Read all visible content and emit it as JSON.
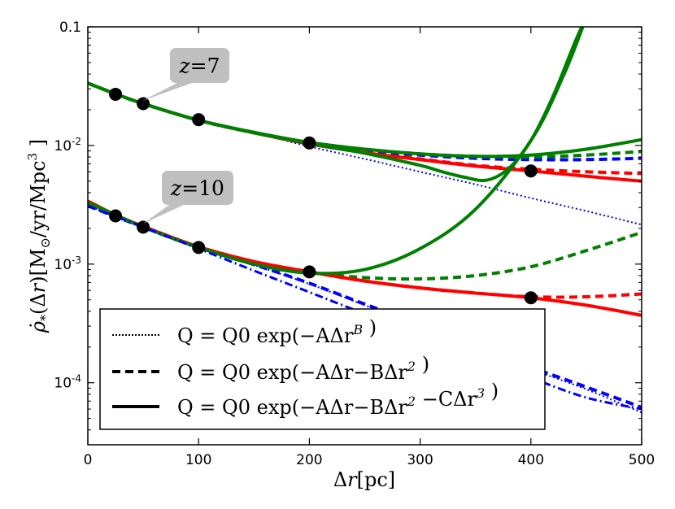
{
  "chart_data": {
    "type": "line",
    "title": "",
    "xlabel": "Δr[pc]",
    "ylabel": "ρ̇*(Δr)[M⊙/yr/Mpc³]",
    "xlim": [
      0,
      500
    ],
    "ylim": [
      3e-05,
      0.1
    ],
    "yscale": "log",
    "x_ticks": [
      0,
      100,
      200,
      300,
      400,
      500
    ],
    "x_tick_labels": [
      "0",
      "100",
      "200",
      "300",
      "400",
      "500"
    ],
    "y_ticks": [
      0.0001,
      0.001,
      0.01,
      0.1
    ],
    "y_tick_labels": [
      {
        "base": "10",
        "exp": "-4"
      },
      {
        "base": "10",
        "exp": "-3"
      },
      {
        "base": "10",
        "exp": "-2"
      },
      {
        "base": "0.1",
        "exp": ""
      }
    ],
    "annotations": [
      {
        "text": "z = 7",
        "var": "z",
        "eq": "=",
        "val": "7",
        "x": 80,
        "y": 0.04
      },
      {
        "text": "z = 10",
        "var": "z",
        "eq": "=",
        "val": "10",
        "x": 80,
        "y": 0.0036
      }
    ],
    "legend": {
      "placement": "lower-left",
      "entries": [
        {
          "style": "dotted",
          "label": "Q = Q0 exp(−AΔr^B )"
        },
        {
          "style": "dashed",
          "label": "Q = Q0 exp(−AΔr−BΔr^2 )"
        },
        {
          "style": "solid",
          "label": "Q = Q0 exp(−AΔr−BΔr^2 −CΔr^3 )"
        }
      ]
    },
    "colors": {
      "red": "#ff0000",
      "green": "#007f00",
      "blue": "#0000ff",
      "points": "#000000"
    },
    "points": [
      {
        "name": "z7",
        "x": [
          25,
          50,
          100,
          200,
          400
        ],
        "y": [
          0.027,
          0.0225,
          0.0165,
          0.0105,
          0.0061
        ]
      },
      {
        "name": "z10",
        "x": [
          25,
          50,
          100,
          200,
          400
        ],
        "y": [
          0.00255,
          0.00205,
          0.00138,
          0.00086,
          0.00052
        ]
      }
    ],
    "series": [
      {
        "name": "z7 exp(-A dr^B)",
        "color": "blue",
        "style": "dotted",
        "x": [
          0,
          25,
          50,
          100,
          150,
          200,
          250,
          300,
          350,
          400,
          450,
          500
        ],
        "y": [
          0.0335,
          0.0272,
          0.0225,
          0.0163,
          0.0128,
          0.0098,
          0.0077,
          0.006,
          0.0047,
          0.0036,
          0.0028,
          0.00215
        ]
      },
      {
        "name": "z7 exp(-A dr-B dr^2) red",
        "color": "red",
        "style": "dashed",
        "x": [
          0,
          25,
          50,
          100,
          150,
          200,
          250,
          300,
          350,
          400,
          450,
          500
        ],
        "y": [
          0.0335,
          0.0272,
          0.0225,
          0.0163,
          0.0128,
          0.0103,
          0.0088,
          0.0077,
          0.0068,
          0.0063,
          0.006,
          0.0058
        ]
      },
      {
        "name": "z7 exp(-A dr-B dr^2) blue",
        "color": "blue",
        "style": "dashed",
        "x": [
          0,
          25,
          50,
          100,
          150,
          200,
          250,
          300,
          350,
          400,
          450,
          500
        ],
        "y": [
          0.0335,
          0.0272,
          0.0225,
          0.0163,
          0.0128,
          0.0105,
          0.0091,
          0.0083,
          0.0078,
          0.0076,
          0.0076,
          0.0078
        ]
      },
      {
        "name": "z7 exp(-A dr-B dr^2) green",
        "color": "green",
        "style": "dashed",
        "x": [
          0,
          25,
          50,
          100,
          150,
          200,
          250,
          300,
          350,
          400,
          450,
          500
        ],
        "y": [
          0.0335,
          0.0272,
          0.0225,
          0.0163,
          0.0128,
          0.0106,
          0.0093,
          0.0085,
          0.0081,
          0.008,
          0.0083,
          0.0089
        ]
      },
      {
        "name": "z7 exp(-A dr-B dr^2-C dr^3) red",
        "color": "red",
        "style": "solid",
        "x": [
          0,
          25,
          50,
          100,
          150,
          200,
          250,
          300,
          350,
          400,
          450,
          500
        ],
        "y": [
          0.0335,
          0.0272,
          0.0225,
          0.0163,
          0.0128,
          0.0103,
          0.0087,
          0.0076,
          0.0067,
          0.0061,
          0.0055,
          0.005
        ]
      },
      {
        "name": "z7 exp(-A dr-B dr^2-C dr^3) green cubic",
        "color": "green",
        "style": "solid",
        "x": [
          0,
          25,
          50,
          100,
          150,
          200,
          250,
          300,
          320,
          340,
          360,
          380,
          400,
          420,
          440,
          450
        ],
        "y": [
          0.0335,
          0.0272,
          0.0225,
          0.0163,
          0.0128,
          0.0104,
          0.0086,
          0.0068,
          0.006,
          0.0054,
          0.0051,
          0.0064,
          0.011,
          0.026,
          0.075,
          0.12
        ]
      },
      {
        "name": "z7 exp(-A dr-B dr^2-C dr^3) green",
        "color": "green",
        "style": "solid",
        "x": [
          0,
          25,
          50,
          100,
          150,
          200,
          250,
          300,
          350,
          400,
          450,
          500
        ],
        "y": [
          0.0335,
          0.0272,
          0.0225,
          0.0163,
          0.0129,
          0.0106,
          0.0093,
          0.0085,
          0.0081,
          0.0083,
          0.0093,
          0.0112
        ]
      },
      {
        "name": "z10 exp(-A dr^B)",
        "color": "blue",
        "style": "dotted",
        "x": [
          0,
          50,
          100,
          150,
          200,
          250,
          300,
          350,
          400,
          450,
          500
        ],
        "y": [
          0.0031,
          0.00205,
          0.00138,
          0.00098,
          0.00068,
          0.00045,
          0.0003,
          0.000195,
          0.00013,
          8.8e-05,
          5.6e-05
        ]
      },
      {
        "name": "z10 exp(-A dr-B dr^2) red",
        "color": "red",
        "style": "dashed",
        "x": [
          0,
          25,
          50,
          100,
          150,
          200,
          250,
          300,
          350,
          400,
          450,
          500
        ],
        "y": [
          0.0033,
          0.0026,
          0.00208,
          0.0014,
          0.00105,
          0.00086,
          0.00072,
          0.00063,
          0.00057,
          0.00053,
          0.00053,
          0.00056
        ]
      },
      {
        "name": "z10 exp(-A dr-B dr^2) green",
        "color": "green",
        "style": "dashed",
        "x": [
          0,
          25,
          50,
          100,
          150,
          200,
          250,
          300,
          350,
          400,
          450,
          500
        ],
        "y": [
          0.0033,
          0.0026,
          0.00205,
          0.00138,
          0.00102,
          0.00085,
          0.00077,
          0.00075,
          0.0008,
          0.00095,
          0.0013,
          0.00185
        ]
      },
      {
        "name": "z10 exp(-A dr-B dr^2) blue",
        "color": "blue",
        "style": "dashed",
        "x": [
          0,
          50,
          100,
          150,
          200,
          250,
          300,
          350,
          400,
          450,
          500
        ],
        "y": [
          0.0031,
          0.00205,
          0.00138,
          0.00099,
          0.00069,
          0.00046,
          0.00031,
          0.0002,
          0.000135,
          9.2e-05,
          6.2e-05
        ]
      },
      {
        "name": "z10 exp(-A dr-B dr^2-C dr^3) red",
        "color": "red",
        "style": "solid",
        "x": [
          0,
          25,
          50,
          100,
          150,
          200,
          250,
          300,
          350,
          400,
          450,
          500
        ],
        "y": [
          0.0034,
          0.0026,
          0.00208,
          0.0014,
          0.00105,
          0.00086,
          0.00072,
          0.00063,
          0.00057,
          0.00052,
          0.00045,
          0.00037
        ]
      },
      {
        "name": "z10 exp(-A dr-B dr^2-C dr^3) green",
        "color": "green",
        "style": "solid",
        "x": [
          0,
          25,
          50,
          100,
          150,
          200,
          250,
          300,
          350,
          400,
          430,
          450
        ],
        "y": [
          0.0033,
          0.0026,
          0.00205,
          0.00138,
          0.001,
          0.00084,
          0.0009,
          0.00135,
          0.0029,
          0.011,
          0.04,
          0.12
        ]
      },
      {
        "name": "z10 dash-dot blue",
        "color": "blue",
        "style": "dashdot",
        "x": [
          0,
          50,
          100,
          150,
          200,
          250,
          300,
          350,
          400,
          450,
          500
        ],
        "y": [
          0.0031,
          0.00205,
          0.00135,
          0.00088,
          0.00058,
          0.00038,
          0.00025,
          0.000165,
          0.00011,
          7.5e-05,
          6e-05
        ]
      }
    ]
  }
}
